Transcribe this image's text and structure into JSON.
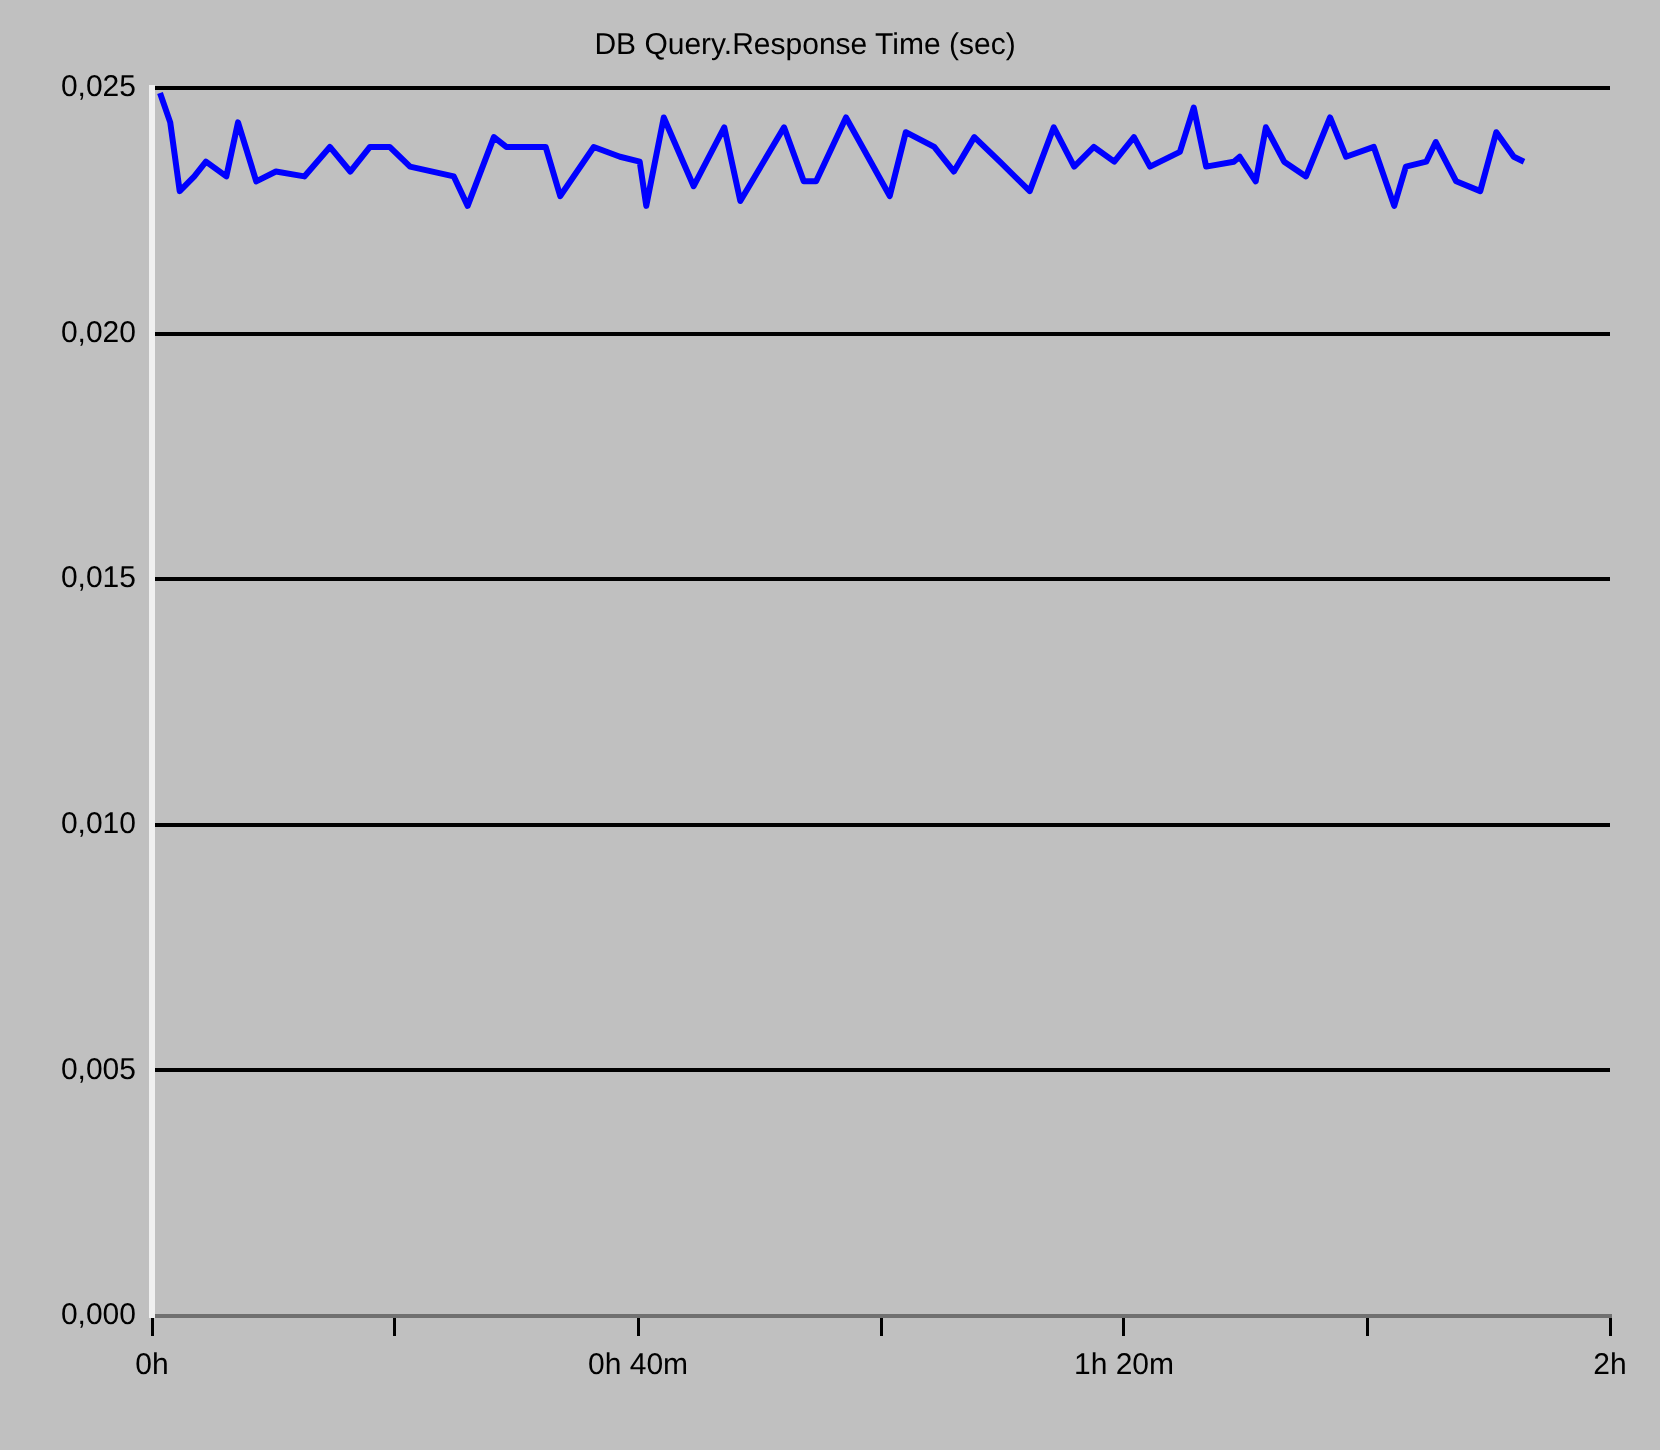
{
  "chart_data": {
    "type": "line",
    "title": "DB Query.Response Time (sec)",
    "x": [
      0.011,
      0.025,
      0.038,
      0.058,
      0.074,
      0.102,
      0.118,
      0.143,
      0.17,
      0.209,
      0.244,
      0.272,
      0.299,
      0.326,
      0.354,
      0.414,
      0.433,
      0.469,
      0.486,
      0.54,
      0.56,
      0.606,
      0.642,
      0.669,
      0.678,
      0.702,
      0.743,
      0.785,
      0.807,
      0.867,
      0.894,
      0.911,
      0.952,
      1.012,
      1.034,
      1.073,
      1.1,
      1.128,
      1.163,
      1.204,
      1.237,
      1.265,
      1.292,
      1.32,
      1.347,
      1.369,
      1.41,
      1.429,
      1.446,
      1.484,
      1.492,
      1.514,
      1.528,
      1.553,
      1.583,
      1.616,
      1.638,
      1.676,
      1.704,
      1.72,
      1.748,
      1.761,
      1.789,
      1.822,
      1.844,
      1.868,
      1.882
    ],
    "series": [
      {
        "color": "#0000ff",
        "values": [
          0.0249,
          0.0243,
          0.0229,
          0.0232,
          0.0235,
          0.0232,
          0.0243,
          0.0231,
          0.0233,
          0.0232,
          0.0238,
          0.0233,
          0.0238,
          0.0238,
          0.0234,
          0.0232,
          0.0226,
          0.024,
          0.0238,
          0.0238,
          0.0228,
          0.0238,
          0.0236,
          0.0235,
          0.0226,
          0.0244,
          0.023,
          0.0242,
          0.0227,
          0.0242,
          0.0231,
          0.0231,
          0.0244,
          0.0228,
          0.0241,
          0.0238,
          0.0233,
          0.024,
          0.0235,
          0.0229,
          0.0242,
          0.0234,
          0.0238,
          0.0235,
          0.024,
          0.0234,
          0.0237,
          0.0246,
          0.0234,
          0.0235,
          0.0236,
          0.0231,
          0.0242,
          0.0235,
          0.0232,
          0.0244,
          0.0236,
          0.0238,
          0.0226,
          0.0234,
          0.0235,
          0.0239,
          0.0231,
          0.0229,
          0.0241,
          0.0236,
          0.0235
        ]
      }
    ],
    "xlim": [
      0,
      2
    ],
    "xticks": [
      {
        "value": 0,
        "label": "0h"
      },
      {
        "value": 0.3333,
        "label": null
      },
      {
        "value": 0.6667,
        "label": "0h 40m"
      },
      {
        "value": 1,
        "label": null
      },
      {
        "value": 1.3333,
        "label": "1h 20m"
      },
      {
        "value": 1.6667,
        "label": null
      },
      {
        "value": 2,
        "label": "2h"
      }
    ],
    "ylim": [
      0,
      0.025
    ],
    "yticks": [
      {
        "value": 0,
        "label": "0,000"
      },
      {
        "value": 0.005,
        "label": "0,005"
      },
      {
        "value": 0.01,
        "label": "0,010"
      },
      {
        "value": 0.015,
        "label": "0,015"
      },
      {
        "value": 0.02,
        "label": "0,020"
      },
      {
        "value": 0.025,
        "label": "0,025"
      }
    ],
    "grid": "y",
    "legend": false,
    "marker": "none",
    "line_style": "solid"
  }
}
